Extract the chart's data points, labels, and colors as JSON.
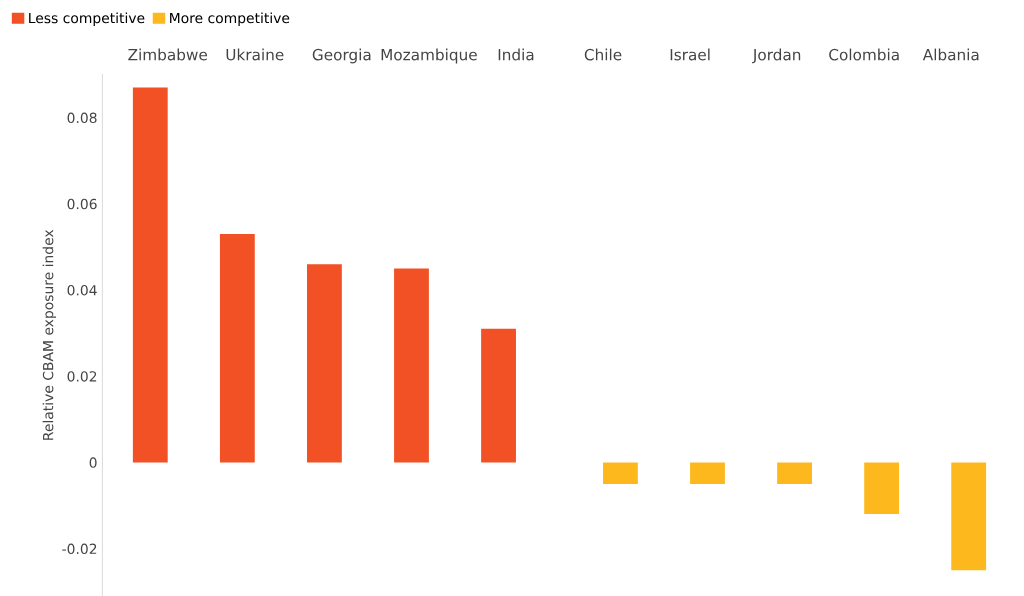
{
  "chart_data": {
    "type": "bar",
    "ylabel": "Relative CBAM exposure index",
    "categories": [
      "Zimbabwe",
      "Ukraine",
      "Georgia",
      "Mozambique",
      "India",
      "Chile",
      "Israel",
      "Jordan",
      "Colombia",
      "Albania"
    ],
    "series": [
      {
        "name": "Less competitive",
        "color": "#f15124",
        "values": [
          0.087,
          0.053,
          0.046,
          0.045,
          0.031,
          null,
          null,
          null,
          null,
          null
        ]
      },
      {
        "name": "More competitive",
        "color": "#fdb81e",
        "values": [
          null,
          null,
          null,
          null,
          null,
          -0.005,
          -0.005,
          -0.005,
          -0.012,
          -0.025
        ]
      }
    ],
    "ylim": [
      -0.031,
      0.09
    ],
    "yticks": [
      {
        "value": -0.02,
        "label": "-0.02"
      },
      0,
      0.02,
      0.04,
      0.06,
      0.08
    ],
    "grid": false,
    "legend": "top left"
  }
}
